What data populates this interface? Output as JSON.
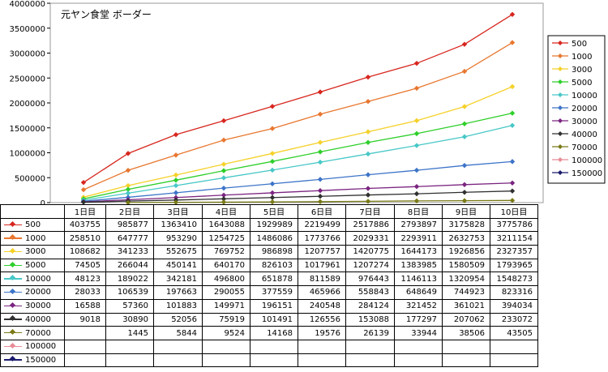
{
  "colors": {
    "500": "#d7261e",
    "1000": "#e8772f",
    "3000": "#f5d12a",
    "5000": "#2ecf2a",
    "10000": "#48c7c7",
    "20000": "#3d74c8",
    "30000": "#7b2480",
    "40000": "#303030",
    "70000": "#7a7a18",
    "100000": "#e88c96",
    "150000": "#1a1a6e"
  },
  "chart_data": {
    "type": "line",
    "title": "元ヤン食堂 ボーダー",
    "xlabel": "",
    "ylabel": "",
    "ylim": [
      0,
      4000000
    ],
    "yticks": [
      "0",
      "500000",
      "1000000",
      "1500000",
      "2000000",
      "2500000",
      "3000000",
      "3500000",
      "4000000"
    ],
    "grid": false,
    "legend_position": "right",
    "categories": [
      "1日目",
      "2日目",
      "3日目",
      "4日目",
      "5日目",
      "6日目",
      "7日目",
      "8日目",
      "9日目",
      "10日目"
    ],
    "series": [
      {
        "name": "500",
        "values": [
          403755,
          985877,
          1363410,
          1643088,
          1929989,
          2219499,
          2517886,
          2793897,
          3175828,
          3775786
        ]
      },
      {
        "name": "1000",
        "values": [
          258510,
          647777,
          953290,
          1254725,
          1486086,
          1773766,
          2029331,
          2293911,
          2632753,
          3211154
        ]
      },
      {
        "name": "3000",
        "values": [
          108682,
          341233,
          552675,
          769752,
          986898,
          1207757,
          1420775,
          1644173,
          1926856,
          2327357
        ]
      },
      {
        "name": "5000",
        "values": [
          74505,
          266044,
          450141,
          640170,
          826103,
          1017961,
          1207274,
          1383985,
          1580509,
          1793965
        ]
      },
      {
        "name": "10000",
        "values": [
          48123,
          189022,
          342181,
          496800,
          651878,
          811589,
          976443,
          1146113,
          1320954,
          1548273
        ]
      },
      {
        "name": "20000",
        "values": [
          28033,
          106539,
          197663,
          290055,
          377559,
          465966,
          558843,
          648649,
          744923,
          823316
        ]
      },
      {
        "name": "30000",
        "values": [
          16588,
          57360,
          101883,
          149971,
          196151,
          240548,
          284124,
          321452,
          361021,
          394034
        ]
      },
      {
        "name": "40000",
        "values": [
          9018,
          30890,
          52056,
          75919,
          101491,
          126556,
          153088,
          177297,
          207062,
          233072
        ]
      },
      {
        "name": "70000",
        "values": [
          null,
          1445,
          5844,
          9524,
          14168,
          19576,
          26139,
          33944,
          38506,
          43505
        ]
      },
      {
        "name": "100000",
        "values": [
          null,
          null,
          null,
          null,
          null,
          null,
          null,
          null,
          null,
          null
        ]
      },
      {
        "name": "150000",
        "values": [
          null,
          null,
          null,
          null,
          null,
          null,
          null,
          null,
          null,
          null
        ]
      }
    ]
  }
}
